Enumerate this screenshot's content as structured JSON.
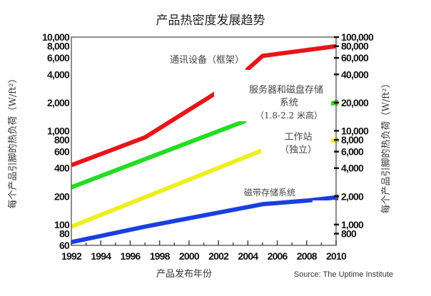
{
  "chart_data": {
    "type": "line",
    "title": "产品热密度发展趋势",
    "xlabel": "产品发布年份",
    "ylabel": "每个产品引脚的热负荷（W/ft²）",
    "ylabel_right": "每个产品引脚的热负荷（W/ft²）",
    "source": "Source: The Uptime Institute",
    "x_range": [
      1992,
      2010
    ],
    "x_ticks": [
      "1992",
      "1994",
      "1996",
      "1998",
      "2000",
      "2002",
      "2004",
      "2006",
      "2008",
      "2010"
    ],
    "y_scale": "log",
    "y_range": [
      60,
      10000
    ],
    "y_ticks_left": [
      {
        "value": 10000,
        "label": "10,000"
      },
      {
        "value": 8000,
        "label": "8,000"
      },
      {
        "value": 6000,
        "label": "6,000"
      },
      {
        "value": 4000,
        "label": "4,000"
      },
      {
        "value": 2000,
        "label": "2,000"
      },
      {
        "value": 1000,
        "label": "1,000"
      },
      {
        "value": 800,
        "label": "800"
      },
      {
        "value": 600,
        "label": "600"
      },
      {
        "value": 400,
        "label": "400"
      },
      {
        "value": 200,
        "label": "200"
      },
      {
        "value": 100,
        "label": "100"
      },
      {
        "value": 80,
        "label": "80"
      },
      {
        "value": 60,
        "label": "60"
      }
    ],
    "y_ticks_right": [
      {
        "value": 100000,
        "label": "100,000"
      },
      {
        "value": 80000,
        "label": "80,000"
      },
      {
        "value": 60000,
        "label": "60,000"
      },
      {
        "value": 40000,
        "label": "40,000"
      },
      {
        "value": 20000,
        "label": "20,000"
      },
      {
        "value": 10000,
        "label": "10,000"
      },
      {
        "value": 8000,
        "label": "8,000"
      },
      {
        "value": 6000,
        "label": "6,000"
      },
      {
        "value": 4000,
        "label": "4,000"
      },
      {
        "value": 2000,
        "label": "2,000"
      },
      {
        "value": 1000,
        "label": "1,000"
      },
      {
        "value": 800,
        "label": "800"
      }
    ],
    "right_axis_factor": 10,
    "grid": false,
    "series": [
      {
        "name": "通讯设备（框架）",
        "color": "#e8141b",
        "points": [
          [
            1992,
            430
          ],
          [
            1997,
            850
          ],
          [
            2003,
            3300
          ],
          [
            2005,
            6300
          ],
          [
            2010,
            8000
          ]
        ]
      },
      {
        "name": "服务器和磁盘存储系统（1.8-2.2 米高）",
        "color": "#22dd22",
        "points": [
          [
            1992,
            250
          ],
          [
            2005,
            1500
          ],
          [
            2010,
            2000
          ]
        ]
      },
      {
        "name": "工作站（独立）",
        "color": "#eeee22",
        "points": [
          [
            1992,
            95
          ],
          [
            2005,
            620
          ],
          [
            2010,
            800
          ]
        ]
      },
      {
        "name": "磁带存储系统",
        "color": "#1a3fe0",
        "points": [
          [
            1992,
            65
          ],
          [
            1997,
            95
          ],
          [
            2005,
            165
          ],
          [
            2008,
            180
          ],
          [
            2010,
            195
          ]
        ]
      }
    ],
    "annotations": {
      "comm": "通讯设备（框架）",
      "server_1": "服务器和磁盘存储",
      "server_2": "系统",
      "server_3": "（1.8-2.2 米高）",
      "ws_1": "工作站",
      "ws_2": "（独立）",
      "tape": "磁带存储系统"
    }
  }
}
